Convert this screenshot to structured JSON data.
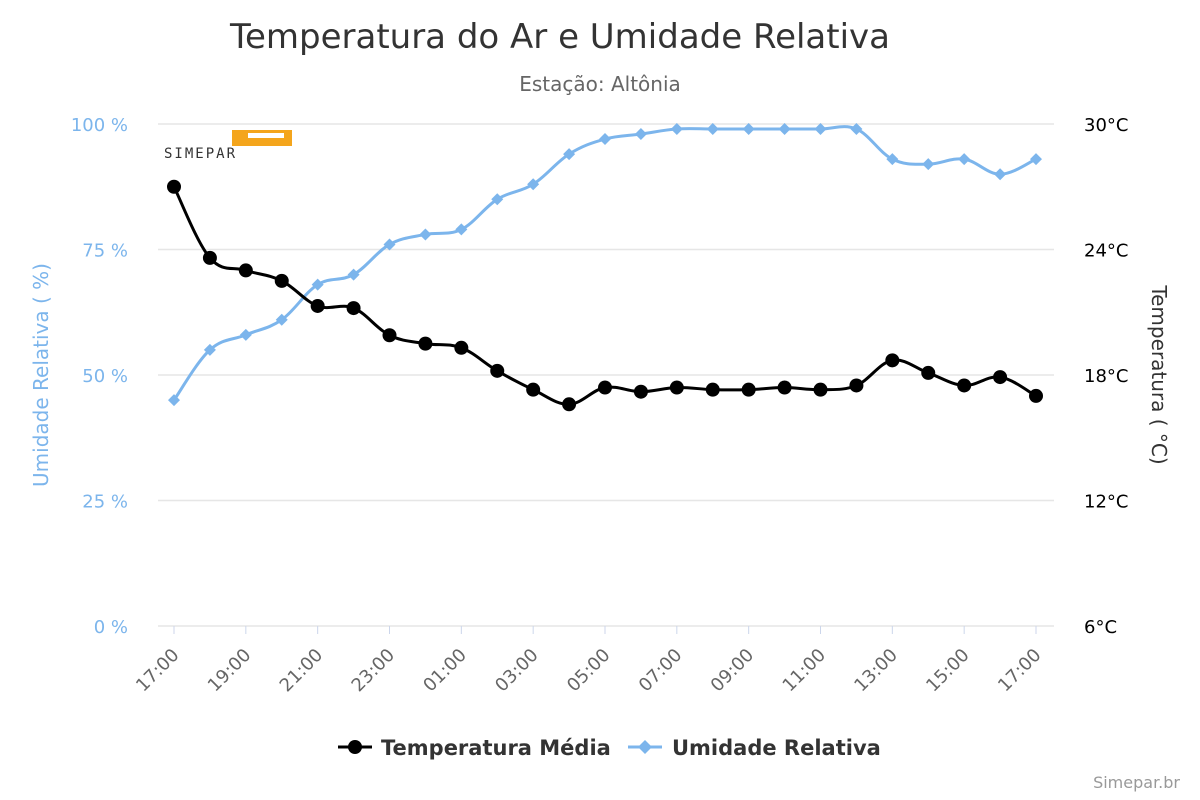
{
  "chart_data": {
    "type": "line",
    "title": "Temperatura do Ar e Umidade Relativa",
    "subtitle": "Estação: Altônia",
    "credits": "Simepar.br",
    "logo_text": "SIMEPAR",
    "x": [
      "17:00",
      "18:00",
      "19:00",
      "20:00",
      "21:00",
      "22:00",
      "23:00",
      "00:00",
      "01:00",
      "02:00",
      "03:00",
      "04:00",
      "05:00",
      "06:00",
      "07:00",
      "08:00",
      "09:00",
      "10:00",
      "11:00",
      "12:00",
      "13:00",
      "14:00",
      "15:00",
      "16:00",
      "17:00"
    ],
    "x_tick_labels": [
      "17:00",
      "19:00",
      "21:00",
      "23:00",
      "01:00",
      "03:00",
      "05:00",
      "07:00",
      "09:00",
      "11:00",
      "13:00",
      "15:00",
      "17:00"
    ],
    "y_left": {
      "label": "Umidade Relativa ( %)",
      "range": [
        0,
        100
      ],
      "ticks": [
        "0 %",
        "25 %",
        "50 %",
        "75 %",
        "100 %"
      ],
      "tick_values": [
        0,
        25,
        50,
        75,
        100
      ]
    },
    "y_right": {
      "label": "Temperatura ( °C)",
      "range": [
        6,
        30
      ],
      "ticks": [
        "6°C",
        "12°C",
        "18°C",
        "24°C",
        "30°C"
      ],
      "tick_values": [
        6,
        12,
        18,
        24,
        30
      ]
    },
    "grid": true,
    "legend_placement": "bottom-center",
    "series": [
      {
        "name": "Temperatura Média",
        "axis": "right",
        "color": "#000000",
        "marker": "circle",
        "values": [
          27.0,
          23.6,
          23.0,
          22.5,
          21.3,
          21.2,
          19.9,
          19.5,
          19.3,
          18.2,
          17.3,
          16.6,
          17.4,
          17.2,
          17.4,
          17.3,
          17.3,
          17.4,
          17.3,
          17.5,
          18.7,
          18.1,
          17.5,
          17.9,
          17.0
        ]
      },
      {
        "name": "Umidade Relativa",
        "axis": "left",
        "color": "#7cb5ec",
        "marker": "diamond",
        "values": [
          45,
          55,
          58,
          61,
          68,
          70,
          76,
          78,
          79,
          85,
          88,
          94,
          97,
          98,
          99,
          99,
          99,
          99,
          99,
          99,
          93,
          92,
          93,
          90,
          93
        ]
      }
    ]
  }
}
